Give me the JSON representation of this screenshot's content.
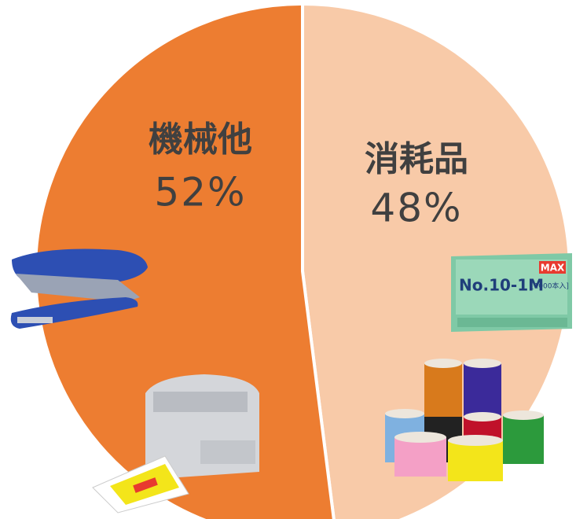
{
  "chart_data": {
    "type": "pie",
    "categories": [
      "消耗品",
      "機械他"
    ],
    "values": [
      48,
      52
    ],
    "value_labels": [
      "48%",
      "52%"
    ],
    "colors": [
      "#f8caa8",
      "#ed7d31"
    ],
    "annotations": [
      "MAX",
      "No.10-1M",
      "[1000本入]"
    ]
  }
}
